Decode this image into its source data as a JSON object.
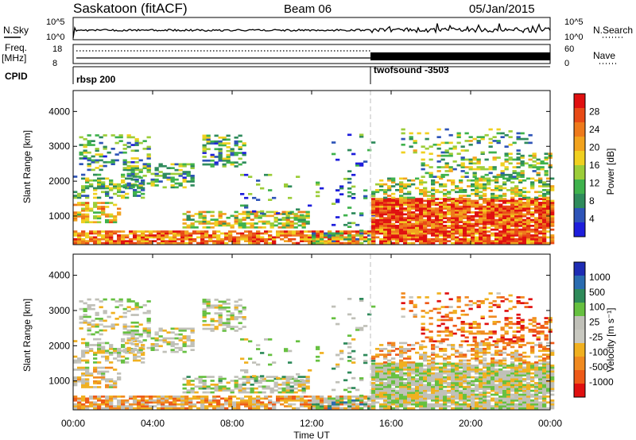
{
  "header": {
    "station": "Saskatoon (fitACF)",
    "beam": "Beam 06",
    "date": "05/Jan/2015"
  },
  "strip_labels": {
    "nsky": "N.Sky",
    "nsky_ticks": [
      "10^5",
      "10^0"
    ],
    "nsearch": "N.Search",
    "nsearch_ticks": [
      "10^5",
      "10^0"
    ],
    "freq": "Freq.",
    "freq_unit": "[MHz]",
    "freq_ticks": [
      "18",
      "8"
    ],
    "nave": "Nave",
    "nave_ticks": [
      "60",
      "0"
    ],
    "cpid": "CPID"
  },
  "cpid_modes": [
    {
      "label": "rbsp 200",
      "start": "00:00"
    },
    {
      "label": "twofsound -3503",
      "start": "15:00"
    }
  ],
  "chart_data": [
    {
      "type": "heatmap",
      "panel": "power",
      "xlabel": "",
      "ylabel": "Slant Range [km]",
      "xlim": [
        0,
        24
      ],
      "ylim": [
        180,
        4600
      ],
      "x_ticks": [
        "00:00",
        "04:00",
        "08:00",
        "12:00",
        "16:00",
        "20:00",
        "00:00"
      ],
      "y_ticks": [
        1000,
        2000,
        3000,
        4000
      ],
      "colorbar_label": "Power [dB]",
      "colorbar_ticks": [
        "4",
        "8",
        "12",
        "16",
        "20",
        "24",
        "28"
      ],
      "colors": [
        "#1e1edc",
        "#2e54b8",
        "#2f8b5c",
        "#3fb24c",
        "#9ccd39",
        "#f0d020",
        "#f2a31e",
        "#ee7a1c",
        "#e84a16",
        "#e01010"
      ],
      "mode_change_time": 15
    },
    {
      "type": "heatmap",
      "panel": "velocity",
      "xlabel": "Time UT",
      "ylabel": "Slant Range [km]",
      "xlim": [
        0,
        24
      ],
      "ylim": [
        180,
        4600
      ],
      "x_ticks": [
        "00:00",
        "04:00",
        "08:00",
        "12:00",
        "16:00",
        "20:00",
        "00:00"
      ],
      "y_ticks": [
        1000,
        2000,
        3000,
        4000
      ],
      "colorbar_label": "Velocity [m s⁻¹]",
      "colorbar_ticks": [
        "1000",
        "500",
        "100",
        "25",
        "-25",
        "-100",
        "-500",
        "-1000"
      ],
      "colors": [
        "#1e2cb4",
        "#2a6cb0",
        "#2e8a5a",
        "#66c040",
        "#c0c0b8",
        "#c8c8c0",
        "#f0b020",
        "#f08a20",
        "#ee5a18",
        "#e01010"
      ],
      "mode_change_time": 15
    }
  ]
}
